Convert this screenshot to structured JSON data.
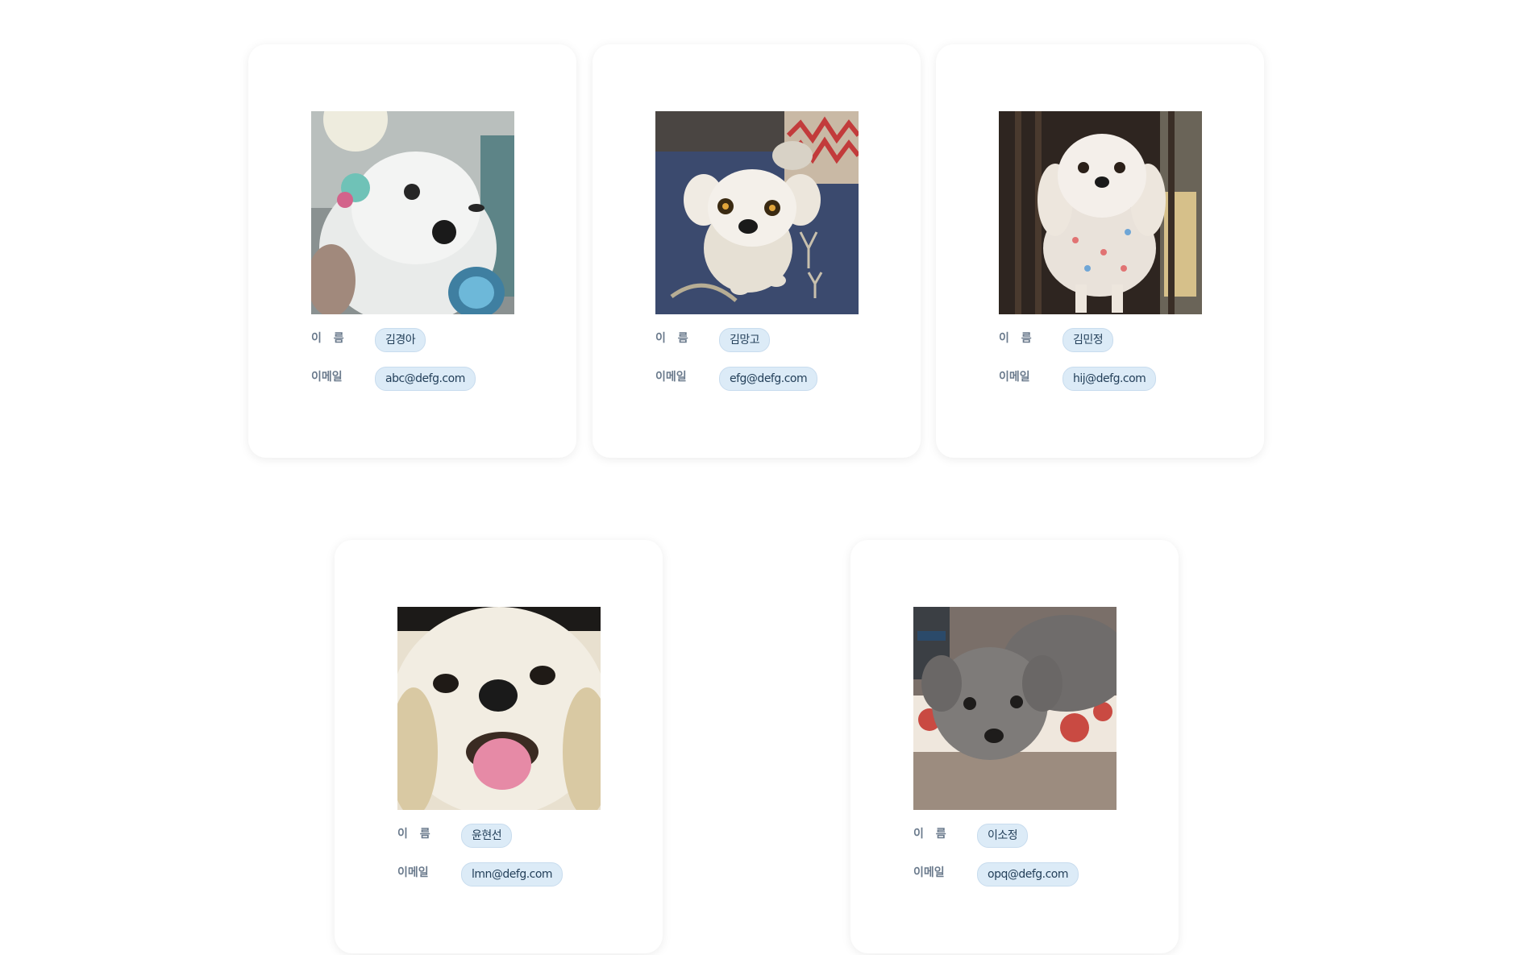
{
  "labels": {
    "name": "이 름",
    "email": "이메일"
  },
  "cards": [
    {
      "name": "김경아",
      "email": "abc@defg.com",
      "photo_icon": "white-maltese-with-bow-photo"
    },
    {
      "name": "김망고",
      "email": "efg@defg.com",
      "photo_icon": "white-dog-on-blanket-photo"
    },
    {
      "name": "김민정",
      "email": "hij@defg.com",
      "photo_icon": "white-dog-in-dress-photo"
    },
    {
      "name": "윤현선",
      "email": "lmn@defg.com",
      "photo_icon": "white-dog-tongue-out-photo"
    },
    {
      "name": "이소정",
      "email": "opq@defg.com",
      "photo_icon": "gray-poodle-photo"
    }
  ],
  "colors": {
    "background": "#ffffff",
    "card": "#ffffff",
    "pill_background": "#dcebf7",
    "pill_text": "#24405a",
    "label_text": "#6a7a8c"
  }
}
